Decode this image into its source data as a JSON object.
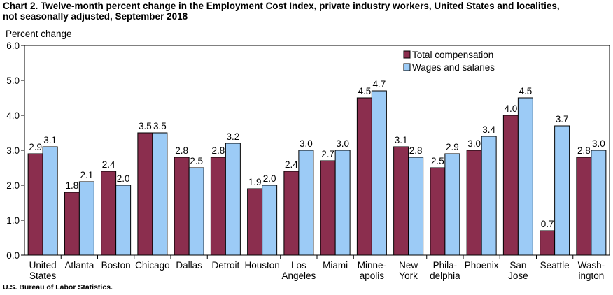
{
  "title_line1": "Chart 2. Twelve-month percent change in the Employment Cost Index, private industry workers, United States and localities,",
  "title_line2": "not seasonally adjusted, September 2018",
  "source": "U.S. Bureau of Labor Statistics.",
  "colors": {
    "total": "#8B2E4E",
    "wages": "#9CCBF6"
  },
  "chart_data": {
    "type": "bar",
    "ylabel": "Percent change",
    "ylim": [
      0,
      6
    ],
    "yticks": [
      "0.0",
      "1.0",
      "2.0",
      "3.0",
      "4.0",
      "5.0",
      "6.0"
    ],
    "grid": false,
    "legend_position": "top-right",
    "categories": [
      [
        "United",
        "States"
      ],
      [
        "Atlanta"
      ],
      [
        "Boston"
      ],
      [
        "Chicago"
      ],
      [
        "Dallas"
      ],
      [
        "Detroit"
      ],
      [
        "Houston"
      ],
      [
        "Los",
        "Angeles"
      ],
      [
        "Miami"
      ],
      [
        "Minne-",
        "apolis"
      ],
      [
        "New",
        "York"
      ],
      [
        "Phila-",
        "delphia"
      ],
      [
        "Phoenix"
      ],
      [
        "San",
        "Jose"
      ],
      [
        "Seattle"
      ],
      [
        "Wash-",
        "ington"
      ]
    ],
    "series": [
      {
        "name": "Total compensation",
        "values": [
          2.9,
          1.8,
          2.4,
          3.5,
          2.8,
          2.8,
          1.9,
          2.4,
          2.7,
          4.5,
          3.1,
          2.5,
          3.0,
          4.0,
          0.7,
          2.8
        ]
      },
      {
        "name": "Wages and salaries",
        "values": [
          3.1,
          2.1,
          2.0,
          3.5,
          2.5,
          3.2,
          2.0,
          3.0,
          3.0,
          4.7,
          2.8,
          2.9,
          3.4,
          4.5,
          3.7,
          3.0
        ]
      }
    ]
  }
}
